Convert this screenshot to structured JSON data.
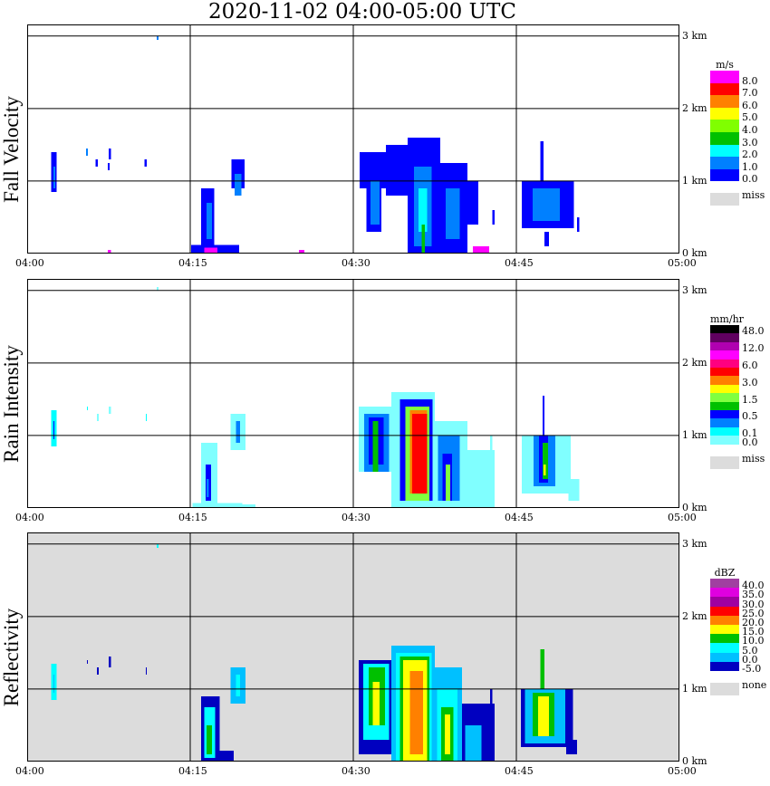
{
  "title": "2020-11-02   04:00-05:00 UTC",
  "chart_data": [
    {
      "type": "heatmap",
      "title": "Fall Velocity",
      "unit": "m/s",
      "x_ticks": [
        "04:00",
        "04:15",
        "04:30",
        "04:45",
        "05:00"
      ],
      "y_ticks": [
        "0 km",
        "1 km",
        "2 km",
        "3 km"
      ],
      "xlim_minutes": [
        0,
        60
      ],
      "ylim_km": [
        0,
        3.16
      ],
      "background": "#ffffff",
      "colors": [
        "#0000ff",
        "#0080ff",
        "#00ffff",
        "#00c000",
        "#80ff00",
        "#ffff00",
        "#ff8000",
        "#ff0000",
        "#ff00ff"
      ],
      "legend_labels": [
        {
          "text": "8.0",
          "level": 8
        },
        {
          "text": "7.0",
          "level": 7
        },
        {
          "text": "6.0",
          "level": 6
        },
        {
          "text": "5.0",
          "level": 5
        },
        {
          "text": "4.0",
          "level": 4
        },
        {
          "text": "3.0",
          "level": 3
        },
        {
          "text": "2.0",
          "level": 2
        },
        {
          "text": "1.0",
          "level": 1
        },
        {
          "text": "0.0",
          "level": 0
        }
      ],
      "missing_label": "miss",
      "missing_color": "#dcdcdc",
      "cells_note": "[start_min, end_min, bottom_km, top_km, level]",
      "cells": [
        [
          2.2,
          2.7,
          0.85,
          1.4,
          0
        ],
        [
          2.4,
          2.6,
          0.9,
          1.2,
          1
        ],
        [
          5.4,
          5.6,
          1.35,
          1.45,
          1
        ],
        [
          6.3,
          6.5,
          1.2,
          1.3,
          0
        ],
        [
          7.5,
          7.7,
          1.3,
          1.45,
          0
        ],
        [
          7.4,
          7.6,
          1.15,
          1.25,
          0
        ],
        [
          10.8,
          11,
          1.2,
          1.3,
          0
        ],
        [
          11.9,
          12.1,
          2.95,
          3.0,
          1
        ],
        [
          7.4,
          7.7,
          0,
          0.05,
          8
        ],
        [
          25,
          25.5,
          0,
          0.05,
          8
        ],
        [
          15.1,
          19.5,
          0,
          0.12,
          0
        ],
        [
          16,
          17.2,
          0.12,
          0.9,
          0
        ],
        [
          16.5,
          17,
          0.2,
          0.7,
          1
        ],
        [
          16.3,
          17.5,
          0,
          0.08,
          8
        ],
        [
          18.8,
          20,
          0.9,
          1.3,
          0
        ],
        [
          19.1,
          19.7,
          0.8,
          1.1,
          1
        ],
        [
          30.6,
          33,
          0.9,
          1.4,
          0
        ],
        [
          31.2,
          32.6,
          0.3,
          1.0,
          0
        ],
        [
          31.6,
          32.4,
          0.4,
          1.0,
          1
        ],
        [
          33,
          35,
          0.8,
          1.5,
          0
        ],
        [
          35,
          38,
          0,
          1.6,
          0
        ],
        [
          35.6,
          37.2,
          0.1,
          1.2,
          1
        ],
        [
          36,
          36.8,
          0.3,
          0.9,
          2
        ],
        [
          36.3,
          36.6,
          0,
          0.4,
          3
        ],
        [
          38,
          40.5,
          0,
          1.25,
          0
        ],
        [
          38.5,
          39.8,
          0.2,
          0.9,
          1
        ],
        [
          40.5,
          41.5,
          0.4,
          1.0,
          0
        ],
        [
          41,
          42.5,
          0,
          0.1,
          8
        ],
        [
          42.8,
          43,
          0.4,
          0.6,
          0
        ],
        [
          45.5,
          50.3,
          0.35,
          1.0,
          0
        ],
        [
          46.5,
          49,
          0.45,
          0.9,
          1
        ],
        [
          47.2,
          47.5,
          1.0,
          1.55,
          0
        ],
        [
          47.6,
          48,
          0.1,
          0.3,
          0
        ],
        [
          50.6,
          50.8,
          0.3,
          0.5,
          0
        ]
      ]
    },
    {
      "type": "heatmap",
      "title": "Rain Intensity",
      "unit": "mm/hr",
      "x_ticks": [
        "04:00",
        "04:15",
        "04:30",
        "04:45",
        "05:00"
      ],
      "y_ticks": [
        "0 km",
        "1 km",
        "2 km",
        "3 km"
      ],
      "xlim_minutes": [
        0,
        60
      ],
      "ylim_km": [
        0,
        3.16
      ],
      "background": "#ffffff",
      "colors": [
        "#80ffff",
        "#00ffff",
        "#0080ff",
        "#0000ff",
        "#00c000",
        "#80ff40",
        "#ffff00",
        "#ff8000",
        "#ff0000",
        "#ff0080",
        "#ff00ff",
        "#b000b0",
        "#600060",
        "#000000"
      ],
      "legend_labels": [
        {
          "text": "48.0",
          "level": 13
        },
        {
          "text": "12.0",
          "level": 11
        },
        {
          "text": "6.0",
          "level": 9
        },
        {
          "text": "3.0",
          "level": 7
        },
        {
          "text": "1.5",
          "level": 5
        },
        {
          "text": "0.5",
          "level": 3
        },
        {
          "text": "0.1",
          "level": 1
        },
        {
          "text": "0.0",
          "level": 0
        }
      ],
      "missing_label": "miss",
      "missing_color": "#dcdcdc",
      "cells": [
        [
          2.2,
          2.7,
          0.85,
          1.35,
          1
        ],
        [
          2.4,
          2.5,
          0.95,
          1.2,
          3
        ],
        [
          5.5,
          5.6,
          1.35,
          1.4,
          1
        ],
        [
          6.4,
          6.6,
          1.2,
          1.3,
          0
        ],
        [
          7.5,
          7.7,
          1.3,
          1.4,
          0
        ],
        [
          10.9,
          11,
          1.2,
          1.3,
          1
        ],
        [
          11.9,
          12.1,
          3.0,
          3.05,
          0
        ],
        [
          15.2,
          19.8,
          0,
          0.07,
          0
        ],
        [
          17.5,
          21,
          0,
          0.05,
          0
        ],
        [
          16,
          17.5,
          0,
          0.9,
          0
        ],
        [
          16.4,
          16.9,
          0.1,
          0.6,
          3
        ],
        [
          16.5,
          16.7,
          0.15,
          0.4,
          2
        ],
        [
          18.7,
          20.1,
          0.8,
          1.3,
          0
        ],
        [
          19.2,
          19.6,
          0.9,
          1.2,
          2
        ],
        [
          30.5,
          34,
          0.5,
          1.4,
          0
        ],
        [
          31,
          33.3,
          0.5,
          1.3,
          2
        ],
        [
          31.4,
          32.8,
          0.6,
          1.25,
          3
        ],
        [
          31.8,
          32.3,
          0.5,
          1.2,
          4
        ],
        [
          33.5,
          37.5,
          0,
          1.6,
          0
        ],
        [
          34.3,
          37.3,
          0.1,
          1.5,
          3
        ],
        [
          34.8,
          37.0,
          0.1,
          1.4,
          5
        ],
        [
          35.2,
          36.8,
          0.2,
          1.35,
          7
        ],
        [
          35.4,
          36.8,
          0.2,
          1.3,
          8
        ],
        [
          37.5,
          40.5,
          0,
          1.2,
          0
        ],
        [
          37.8,
          39.8,
          0.1,
          1.0,
          2
        ],
        [
          38.2,
          39.1,
          0.1,
          0.75,
          3
        ],
        [
          38.5,
          38.9,
          0.1,
          0.6,
          5
        ],
        [
          40.5,
          43,
          0,
          0.8,
          0
        ],
        [
          42.6,
          42.8,
          0.6,
          1.0,
          0
        ],
        [
          45.5,
          50,
          0.2,
          1.0,
          0
        ],
        [
          46.6,
          48.6,
          0.3,
          1.0,
          2
        ],
        [
          47.1,
          47.9,
          0.35,
          1.0,
          3
        ],
        [
          47.4,
          47.9,
          0.4,
          0.9,
          4
        ],
        [
          47.5,
          47.7,
          0.45,
          0.6,
          6
        ],
        [
          47.4,
          47.6,
          1.0,
          1.55,
          3
        ],
        [
          49.8,
          50.8,
          0.1,
          0.4,
          0
        ]
      ]
    },
    {
      "type": "heatmap",
      "title": "Reflectivity",
      "unit": "dBZ",
      "x_ticks": [
        "04:00",
        "04:15",
        "04:30",
        "04:45",
        "05:00"
      ],
      "y_ticks": [
        "0 km",
        "1 km",
        "2 km",
        "3 km"
      ],
      "xlim_minutes": [
        0,
        60
      ],
      "ylim_km": [
        0,
        3.16
      ],
      "background": "#dcdcdc",
      "colors": [
        "#0000c0",
        "#00c0ff",
        "#00ffff",
        "#00c000",
        "#ffff00",
        "#ff8000",
        "#ff0000",
        "#a000a0",
        "#e000e0",
        "#a040a0"
      ],
      "legend_labels": [
        {
          "text": "40.0",
          "level": 9
        },
        {
          "text": "35.0",
          "level": 8
        },
        {
          "text": "30.0",
          "level": 7
        },
        {
          "text": "25.0",
          "level": 6
        },
        {
          "text": "20.0",
          "level": 5
        },
        {
          "text": "15.0",
          "level": 4
        },
        {
          "text": "10.0",
          "level": 3
        },
        {
          "text": "5.0",
          "level": 2
        },
        {
          "text": "0.0",
          "level": 1
        },
        {
          "text": "-5.0",
          "level": 0
        }
      ],
      "missing_label": "none",
      "missing_color": "#dcdcdc",
      "cells": [
        [
          2.2,
          2.7,
          0.85,
          1.35,
          2
        ],
        [
          2.4,
          2.5,
          0.95,
          1.2,
          1
        ],
        [
          5.5,
          5.6,
          1.35,
          1.4,
          0
        ],
        [
          6.4,
          6.6,
          1.2,
          1.3,
          0
        ],
        [
          7.5,
          7.7,
          1.3,
          1.45,
          0
        ],
        [
          10.9,
          11,
          1.2,
          1.3,
          0
        ],
        [
          11.9,
          12.1,
          2.95,
          3.0,
          2
        ],
        [
          16,
          17.7,
          0,
          0.9,
          0
        ],
        [
          16.3,
          17.3,
          0.05,
          0.75,
          2
        ],
        [
          16.5,
          17,
          0.1,
          0.5,
          3
        ],
        [
          17.3,
          19,
          0,
          0.15,
          0
        ],
        [
          18.7,
          20.1,
          0.8,
          1.3,
          1
        ],
        [
          19.2,
          19.6,
          0.9,
          1.2,
          2
        ],
        [
          30.5,
          34,
          0.1,
          1.4,
          0
        ],
        [
          30.9,
          33.3,
          0.3,
          1.35,
          2
        ],
        [
          31.4,
          32.9,
          0.5,
          1.3,
          3
        ],
        [
          31.8,
          32.4,
          0.5,
          1.1,
          4
        ],
        [
          33.5,
          37.5,
          0,
          1.6,
          1
        ],
        [
          33.9,
          37.2,
          0,
          1.5,
          2
        ],
        [
          34.3,
          37,
          0,
          1.45,
          3
        ],
        [
          34.6,
          36.8,
          0,
          1.4,
          4
        ],
        [
          35.2,
          36.4,
          0.1,
          1.25,
          5
        ],
        [
          37.5,
          40,
          0,
          1.3,
          1
        ],
        [
          37.7,
          39.6,
          0,
          1.0,
          2
        ],
        [
          38.1,
          39.2,
          0,
          0.75,
          3
        ],
        [
          38.4,
          38.9,
          0.1,
          0.65,
          4
        ],
        [
          40,
          43,
          0,
          0.8,
          0
        ],
        [
          40.3,
          41.8,
          0,
          0.5,
          1
        ],
        [
          42.6,
          42.8,
          0.6,
          1.0,
          0
        ],
        [
          45.4,
          50.2,
          0.2,
          1.0,
          0
        ],
        [
          45.8,
          49.5,
          0.25,
          1.0,
          1
        ],
        [
          46.5,
          48.5,
          0.35,
          0.95,
          3
        ],
        [
          47,
          48,
          0.35,
          0.9,
          4
        ],
        [
          47.2,
          47.6,
          1.0,
          1.55,
          3
        ],
        [
          49.6,
          50.6,
          0.1,
          0.3,
          0
        ]
      ]
    }
  ]
}
